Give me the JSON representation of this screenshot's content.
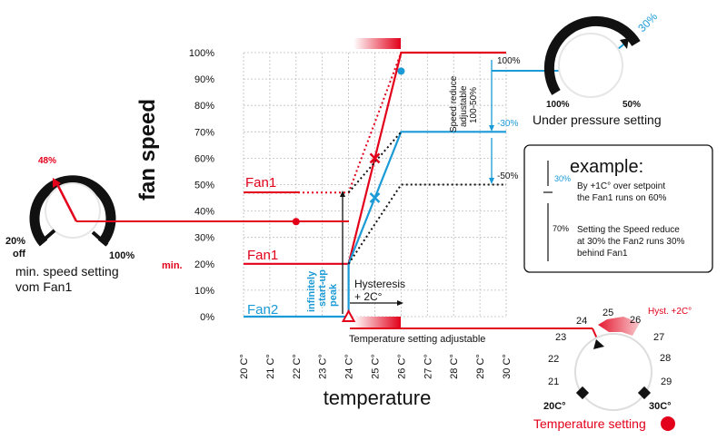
{
  "colors": {
    "red": "#e2001a",
    "blue": "#1a9ad6",
    "black": "#111111",
    "grid": "#bdbdbd"
  },
  "chart_data": {
    "type": "line",
    "x_ticks": [
      "20 C°",
      "21 C°",
      "22 C°",
      "23 C°",
      "24 C°",
      "25 C°",
      "26 C°",
      "27 C°",
      "28 C°",
      "29 C°",
      "30 C°"
    ],
    "y_ticks": [
      "0%",
      "10%",
      "20%",
      "30%",
      "40%",
      "50%",
      "60%",
      "70%",
      "80%",
      "90%",
      "100%"
    ],
    "x_range": [
      20,
      30
    ],
    "y_range": [
      0,
      100
    ],
    "xlabel": "temperature",
    "ylabel": "fan speed",
    "series": [
      {
        "name": "Fan1",
        "points": [
          [
            20,
            20
          ],
          [
            24,
            20
          ],
          [
            26,
            100
          ],
          [
            30,
            100
          ]
        ],
        "style": "solid",
        "color": "red"
      },
      {
        "name": "Fan1",
        "points": [
          [
            20,
            47
          ],
          [
            24,
            47
          ],
          [
            26,
            100
          ]
        ],
        "style": "dotted",
        "color": "red"
      },
      {
        "name": "Fan2",
        "points": [
          [
            20,
            0
          ],
          [
            24,
            0
          ],
          [
            24,
            20
          ],
          [
            26,
            70
          ],
          [
            30,
            70
          ]
        ],
        "style": "solid",
        "color": "blue"
      },
      {
        "points": [
          [
            24,
            20
          ],
          [
            26,
            50
          ],
          [
            30,
            50
          ]
        ],
        "style": "dotted",
        "color": "black"
      },
      {
        "points": [
          [
            24,
            47
          ],
          [
            26,
            70
          ]
        ],
        "style": "dotted",
        "color": "black"
      }
    ],
    "markers": [
      {
        "x": 22,
        "y": 36,
        "shape": "dot",
        "color": "red"
      },
      {
        "x": 25,
        "y": 60,
        "shape": "cross",
        "color": "red"
      },
      {
        "x": 25,
        "y": 45,
        "shape": "cross",
        "color": "blue"
      },
      {
        "x": 26,
        "y": 93,
        "shape": "dot",
        "color": "blue"
      },
      {
        "x": 24,
        "y": 0,
        "shape": "triangle",
        "color": "red"
      }
    ]
  },
  "labels": {
    "fan1_upper": "Fan1",
    "fan1_lower": "Fan1",
    "fan2": "Fan2",
    "min": "min.",
    "startup_peak": [
      "infinitely",
      "start-up",
      "peak"
    ],
    "hysteresis": "Hysteresis",
    "hysteresis_value": "+ 2C°",
    "temp_adjustable": "Temperature setting adjustable",
    "speed_reduce": [
      "Speed reduce",
      "adjustable",
      "100-50%"
    ],
    "pct_100": "100%",
    "pct_minus30": "-30%",
    "pct_minus50": "-50%"
  },
  "min_speed_knob": {
    "value": "48%",
    "left_label": "20%",
    "off_label": "off",
    "right_label": "100%",
    "caption_line1": "min. speed setting",
    "caption_line2": "vom Fan1"
  },
  "pressure_knob": {
    "value": "30%",
    "left_label": "100%",
    "right_label": "50%",
    "caption": "Under pressure setting"
  },
  "example_box": {
    "title": "example:",
    "row1_pct": "30%",
    "row1_line1": "By +1C° over setpoint",
    "row1_line2": "the Fan1 runs on 60%",
    "row2_pct": "70%",
    "row2_line1": "Setting the Speed reduce",
    "row2_line2": "at 30% the Fan2 runs 30%",
    "row2_line3": "behind Fan1"
  },
  "temp_dial": {
    "numbers": [
      "23",
      "24",
      "25",
      "26",
      "27",
      "28",
      "29",
      "21",
      "22"
    ],
    "hyst_label": "Hyst. +2C°",
    "left_label": "20C°",
    "right_label": "30C°",
    "caption": "Temperature setting"
  }
}
